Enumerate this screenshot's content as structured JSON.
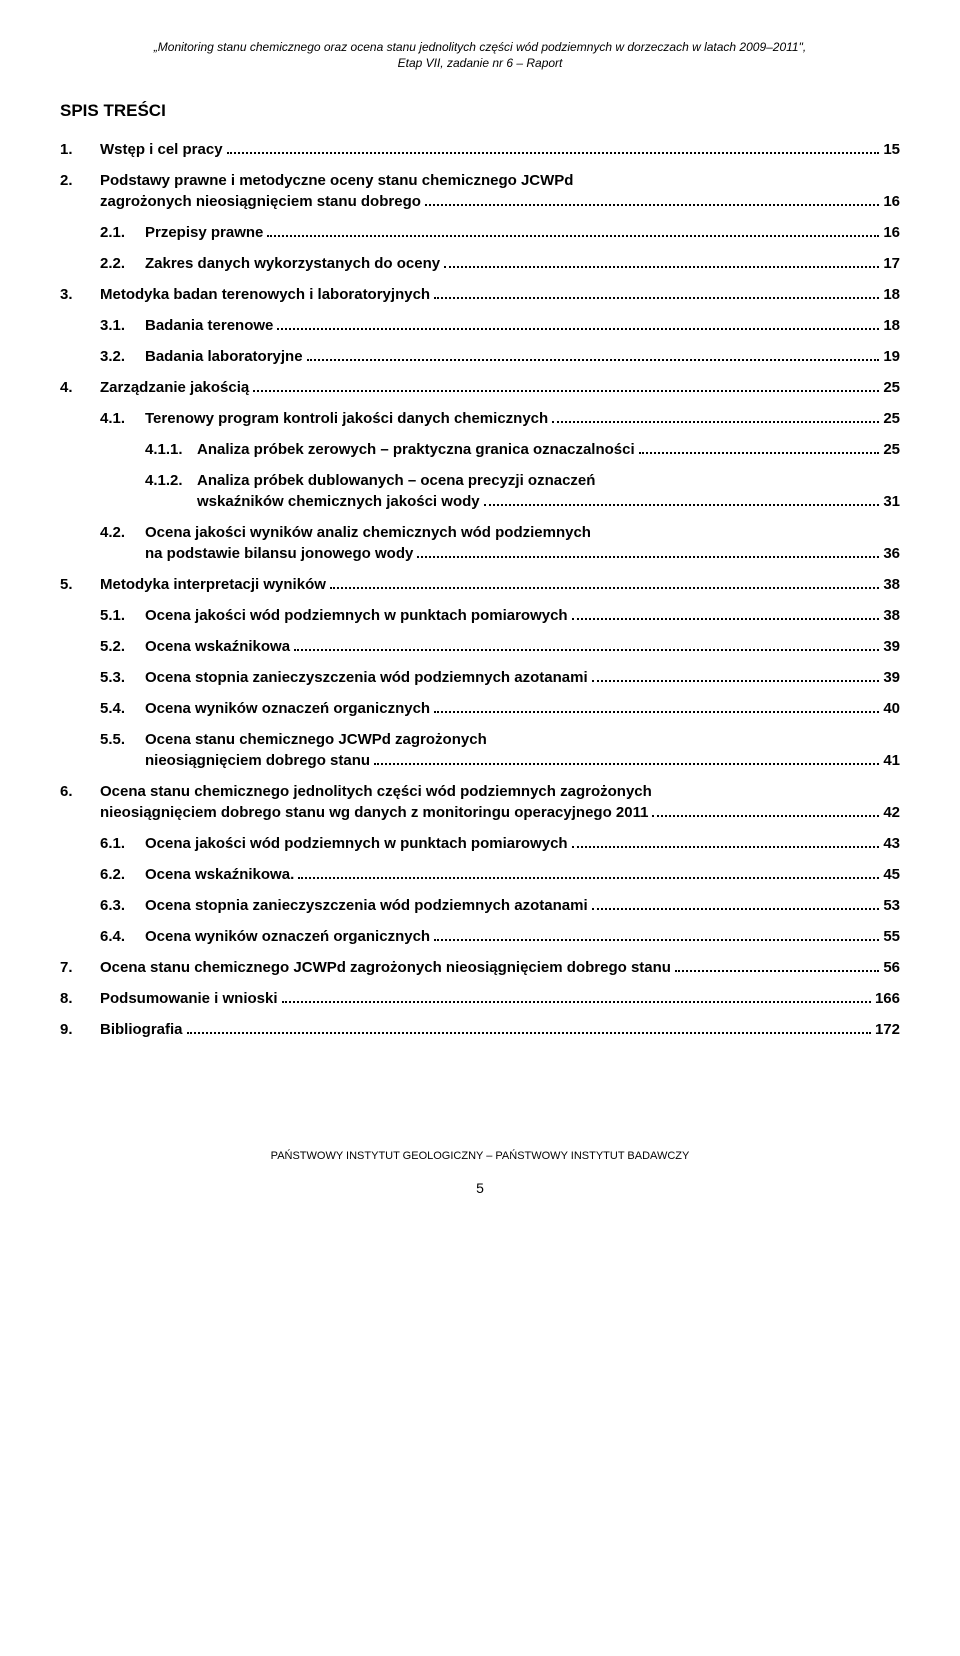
{
  "header": {
    "line1": "„Monitoring stanu chemicznego oraz ocena stanu jednolitych części wód podziemnych w dorzeczach w latach 2009–2011\",",
    "line2": "Etap VII, zadanie nr 6 – Raport"
  },
  "tocTitle": "SPIS TREŚCI",
  "entries": [
    {
      "level": 1,
      "num": "1.",
      "text": "Wstęp i cel pracy",
      "page": "15"
    },
    {
      "level": 1,
      "num": "2.",
      "textLines": [
        "Podstawy prawne i metodyczne oceny stanu chemicznego JCWPd",
        "zagrożonych nieosiągnięciem stanu dobrego"
      ],
      "page": "16"
    },
    {
      "level": 2,
      "num": "2.1.",
      "text": "Przepisy prawne",
      "page": "16"
    },
    {
      "level": 2,
      "num": "2.2.",
      "text": "Zakres danych wykorzystanych do oceny",
      "page": "17"
    },
    {
      "level": 1,
      "num": "3.",
      "text": "Metodyka badan terenowych i laboratoryjnych",
      "page": "18"
    },
    {
      "level": 2,
      "num": "3.1.",
      "text": "Badania terenowe",
      "page": "18"
    },
    {
      "level": 2,
      "num": "3.2.",
      "text": "Badania laboratoryjne",
      "page": "19"
    },
    {
      "level": 1,
      "num": "4.",
      "text": "Zarządzanie jakością",
      "page": "25"
    },
    {
      "level": 2,
      "num": "4.1.",
      "text": "Terenowy program kontroli jakości danych chemicznych",
      "page": "25"
    },
    {
      "level": 3,
      "num": "4.1.1.",
      "text": "Analiza próbek zerowych – praktyczna granica oznaczalności",
      "page": "25"
    },
    {
      "level": 3,
      "num": "4.1.2.",
      "textLines": [
        "Analiza próbek dublowanych – ocena precyzji oznaczeń",
        "wskaźników chemicznych jakości wody"
      ],
      "page": "31"
    },
    {
      "level": 2,
      "num": "4.2.",
      "textLines": [
        "Ocena jakości wyników analiz chemicznych wód podziemnych",
        "na podstawie bilansu jonowego wody"
      ],
      "page": "36"
    },
    {
      "level": 1,
      "num": "5.",
      "text": "Metodyka interpretacji wyników",
      "page": "38"
    },
    {
      "level": 2,
      "num": "5.1.",
      "text": "Ocena jakości wód podziemnych w punktach pomiarowych",
      "page": "38"
    },
    {
      "level": 2,
      "num": "5.2.",
      "text": "Ocena wskaźnikowa",
      "page": "39"
    },
    {
      "level": 2,
      "num": "5.3.",
      "text": "Ocena stopnia zanieczyszczenia wód podziemnych azotanami",
      "page": "39"
    },
    {
      "level": 2,
      "num": "5.4.",
      "text": "Ocena wyników oznaczeń organicznych",
      "page": "40"
    },
    {
      "level": 2,
      "num": "5.5.",
      "textLines": [
        "Ocena stanu chemicznego JCWPd zagrożonych",
        "nieosiągnięciem dobrego stanu"
      ],
      "page": "41"
    },
    {
      "level": 1,
      "num": "6.",
      "textLines": [
        "Ocena stanu chemicznego jednolitych części wód podziemnych zagrożonych",
        "nieosiągnięciem dobrego stanu wg danych z monitoringu operacyjnego 2011"
      ],
      "page": "42"
    },
    {
      "level": 2,
      "num": "6.1.",
      "text": "Ocena jakości wód podziemnych w punktach pomiarowych",
      "page": "43"
    },
    {
      "level": 2,
      "num": "6.2.",
      "text": "Ocena wskaźnikowa.",
      "page": "45"
    },
    {
      "level": 2,
      "num": "6.3.",
      "text": "Ocena stopnia zanieczyszczenia wód podziemnych azotanami",
      "page": "53"
    },
    {
      "level": 2,
      "num": "6.4.",
      "text": "Ocena wyników oznaczeń organicznych",
      "page": "55"
    },
    {
      "level": 1,
      "num": "7.",
      "text": "Ocena stanu chemicznego JCWPd zagrożonych nieosiągnięciem dobrego stanu",
      "page": "56"
    },
    {
      "level": 1,
      "num": "8.",
      "text": "Podsumowanie i wnioski",
      "page": "166"
    },
    {
      "level": 1,
      "num": "9.",
      "text": "Bibliografia",
      "page": "172"
    }
  ],
  "footer": "PAŃSTWOWY INSTYTUT GEOLOGICZNY – PAŃSTWOWY INSTYTUT BADAWCZY",
  "pageNumber": "5"
}
